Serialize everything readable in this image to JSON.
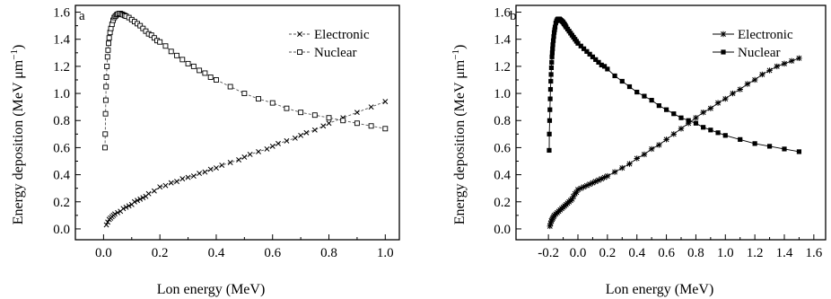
{
  "chart_data": [
    {
      "type": "line",
      "panel_label": "a",
      "xlabel": "Lon energy (MeV)",
      "ylabel": "Energy deposition (MeV μm",
      "ylabel_sup": "−1",
      "ylabel_close": ")",
      "xlim": [
        -0.1,
        1.05
      ],
      "ylim": [
        -0.08,
        1.65
      ],
      "xticks": [
        0.0,
        0.2,
        0.4,
        0.6,
        0.8,
        1.0
      ],
      "xtick_labels": [
        "0.0",
        "0.2",
        "0.4",
        "0.6",
        "0.8",
        "1.0"
      ],
      "yticks": [
        0.0,
        0.2,
        0.4,
        0.6,
        0.8,
        1.0,
        1.2,
        1.4,
        1.6
      ],
      "ytick_labels": [
        "0.0",
        "0.2",
        "0.4",
        "0.6",
        "0.8",
        "1.0",
        "1.2",
        "1.4",
        "1.6"
      ],
      "legend_position": "top-right",
      "series": [
        {
          "name": "Electronic",
          "marker": "x",
          "x": [
            0.01,
            0.015,
            0.02,
            0.025,
            0.03,
            0.035,
            0.04,
            0.05,
            0.06,
            0.07,
            0.08,
            0.09,
            0.1,
            0.11,
            0.12,
            0.13,
            0.14,
            0.15,
            0.16,
            0.18,
            0.2,
            0.22,
            0.24,
            0.26,
            0.28,
            0.3,
            0.32,
            0.34,
            0.36,
            0.38,
            0.4,
            0.42,
            0.45,
            0.48,
            0.5,
            0.52,
            0.55,
            0.58,
            0.6,
            0.62,
            0.65,
            0.68,
            0.7,
            0.72,
            0.75,
            0.78,
            0.8,
            0.85,
            0.9,
            0.95,
            1.0
          ],
          "y": [
            0.03,
            0.05,
            0.07,
            0.08,
            0.09,
            0.1,
            0.11,
            0.12,
            0.13,
            0.15,
            0.16,
            0.17,
            0.18,
            0.2,
            0.21,
            0.22,
            0.23,
            0.24,
            0.26,
            0.28,
            0.31,
            0.32,
            0.34,
            0.35,
            0.37,
            0.38,
            0.39,
            0.41,
            0.42,
            0.44,
            0.45,
            0.47,
            0.49,
            0.51,
            0.53,
            0.55,
            0.57,
            0.59,
            0.61,
            0.63,
            0.65,
            0.67,
            0.69,
            0.71,
            0.73,
            0.76,
            0.78,
            0.82,
            0.86,
            0.9,
            0.94
          ]
        },
        {
          "name": "Nuclear",
          "marker": "open-square",
          "x": [
            0.005,
            0.006,
            0.007,
            0.008,
            0.009,
            0.01,
            0.012,
            0.014,
            0.016,
            0.018,
            0.02,
            0.023,
            0.026,
            0.03,
            0.034,
            0.038,
            0.042,
            0.046,
            0.05,
            0.055,
            0.06,
            0.065,
            0.07,
            0.075,
            0.08,
            0.09,
            0.1,
            0.11,
            0.12,
            0.13,
            0.14,
            0.15,
            0.16,
            0.17,
            0.18,
            0.19,
            0.2,
            0.22,
            0.24,
            0.26,
            0.28,
            0.3,
            0.32,
            0.34,
            0.36,
            0.38,
            0.4,
            0.45,
            0.5,
            0.55,
            0.6,
            0.65,
            0.7,
            0.75,
            0.8,
            0.85,
            0.9,
            0.95,
            1.0
          ],
          "y": [
            0.6,
            0.7,
            0.85,
            0.95,
            1.05,
            1.12,
            1.2,
            1.27,
            1.32,
            1.37,
            1.41,
            1.45,
            1.48,
            1.51,
            1.54,
            1.56,
            1.57,
            1.58,
            1.585,
            1.59,
            1.59,
            1.585,
            1.58,
            1.575,
            1.57,
            1.56,
            1.545,
            1.53,
            1.515,
            1.5,
            1.48,
            1.46,
            1.44,
            1.43,
            1.41,
            1.39,
            1.38,
            1.35,
            1.31,
            1.28,
            1.25,
            1.22,
            1.2,
            1.17,
            1.15,
            1.12,
            1.1,
            1.05,
            1.0,
            0.96,
            0.93,
            0.89,
            0.86,
            0.84,
            0.82,
            0.8,
            0.78,
            0.76,
            0.74
          ]
        }
      ]
    },
    {
      "type": "line",
      "panel_label": "b",
      "xlabel": "Lon energy (MeV)",
      "ylabel": "Energy deposition (MeV μm",
      "ylabel_sup": "−1",
      "ylabel_close": ")",
      "xlim": [
        -0.42,
        1.68
      ],
      "ylim": [
        -0.08,
        1.65
      ],
      "xticks": [
        -0.2,
        0.0,
        0.2,
        0.4,
        0.6,
        0.8,
        1.0,
        1.2,
        1.4,
        1.6
      ],
      "xtick_labels": [
        "-0.2",
        "0.0",
        "0.2",
        "0.4",
        "0.6",
        "0.8",
        "1.0",
        "1.2",
        "1.4",
        "1.6"
      ],
      "yticks": [
        0.0,
        0.2,
        0.4,
        0.6,
        0.8,
        1.0,
        1.2,
        1.4,
        1.6
      ],
      "ytick_labels": [
        "0.0",
        "0.2",
        "0.4",
        "0.6",
        "0.8",
        "1.0",
        "1.2",
        "1.4",
        "1.6"
      ],
      "legend_position": "top-right",
      "series": [
        {
          "name": "Electronic",
          "marker": "asterisk",
          "x": [
            -0.19,
            -0.185,
            -0.18,
            -0.175,
            -0.17,
            -0.165,
            -0.16,
            -0.15,
            -0.14,
            -0.13,
            -0.12,
            -0.11,
            -0.1,
            -0.09,
            -0.08,
            -0.07,
            -0.06,
            -0.05,
            -0.04,
            -0.03,
            -0.02,
            -0.01,
            0.0,
            0.02,
            0.04,
            0.06,
            0.08,
            0.1,
            0.12,
            0.14,
            0.16,
            0.18,
            0.2,
            0.25,
            0.3,
            0.35,
            0.4,
            0.45,
            0.5,
            0.55,
            0.6,
            0.65,
            0.7,
            0.75,
            0.8,
            0.85,
            0.9,
            0.95,
            1.0,
            1.05,
            1.1,
            1.15,
            1.2,
            1.25,
            1.3,
            1.35,
            1.4,
            1.45,
            1.5
          ],
          "y": [
            0.02,
            0.04,
            0.06,
            0.07,
            0.08,
            0.09,
            0.1,
            0.11,
            0.12,
            0.13,
            0.14,
            0.15,
            0.16,
            0.17,
            0.18,
            0.19,
            0.2,
            0.21,
            0.22,
            0.24,
            0.26,
            0.27,
            0.29,
            0.3,
            0.31,
            0.32,
            0.33,
            0.34,
            0.35,
            0.36,
            0.37,
            0.38,
            0.39,
            0.42,
            0.45,
            0.48,
            0.52,
            0.55,
            0.59,
            0.62,
            0.66,
            0.7,
            0.74,
            0.78,
            0.82,
            0.86,
            0.89,
            0.93,
            0.96,
            1.0,
            1.03,
            1.07,
            1.1,
            1.14,
            1.17,
            1.2,
            1.22,
            1.24,
            1.26
          ]
        },
        {
          "name": "Nuclear",
          "marker": "filled-square",
          "x": [
            -0.195,
            -0.194,
            -0.192,
            -0.19,
            -0.188,
            -0.186,
            -0.184,
            -0.182,
            -0.18,
            -0.178,
            -0.176,
            -0.174,
            -0.172,
            -0.17,
            -0.167,
            -0.164,
            -0.161,
            -0.158,
            -0.155,
            -0.15,
            -0.145,
            -0.14,
            -0.135,
            -0.13,
            -0.125,
            -0.12,
            -0.115,
            -0.11,
            -0.105,
            -0.1,
            -0.095,
            -0.09,
            -0.085,
            -0.08,
            -0.07,
            -0.06,
            -0.05,
            -0.04,
            -0.03,
            -0.02,
            -0.01,
            0.0,
            0.02,
            0.04,
            0.06,
            0.08,
            0.1,
            0.12,
            0.14,
            0.16,
            0.18,
            0.2,
            0.25,
            0.3,
            0.35,
            0.4,
            0.45,
            0.5,
            0.55,
            0.6,
            0.65,
            0.7,
            0.75,
            0.8,
            0.85,
            0.9,
            0.95,
            1.0,
            1.1,
            1.2,
            1.3,
            1.4,
            1.5
          ],
          "y": [
            0.58,
            0.7,
            0.8,
            0.88,
            0.96,
            1.03,
            1.09,
            1.14,
            1.19,
            1.23,
            1.27,
            1.3,
            1.33,
            1.36,
            1.39,
            1.42,
            1.45,
            1.47,
            1.49,
            1.52,
            1.535,
            1.545,
            1.55,
            1.55,
            1.55,
            1.545,
            1.54,
            1.535,
            1.53,
            1.525,
            1.515,
            1.51,
            1.5,
            1.49,
            1.475,
            1.46,
            1.445,
            1.43,
            1.415,
            1.4,
            1.385,
            1.37,
            1.35,
            1.33,
            1.31,
            1.29,
            1.27,
            1.25,
            1.23,
            1.21,
            1.2,
            1.18,
            1.13,
            1.09,
            1.05,
            1.01,
            0.98,
            0.95,
            0.91,
            0.88,
            0.85,
            0.82,
            0.8,
            0.78,
            0.75,
            0.73,
            0.71,
            0.69,
            0.66,
            0.63,
            0.61,
            0.59,
            0.57
          ]
        }
      ]
    }
  ]
}
